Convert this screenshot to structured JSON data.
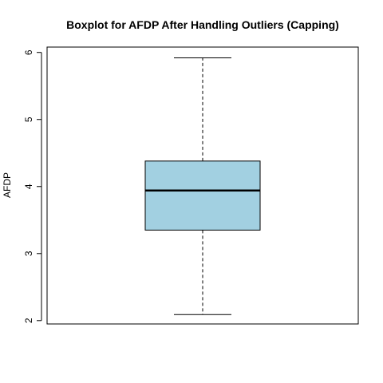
{
  "chart_data": {
    "type": "box",
    "title": "Boxplot for AFDP After Handling Outliers (Capping)",
    "ylabel": "AFDP",
    "xlabel": "",
    "ylim": [
      1.95,
      6.08
    ],
    "yticks": [
      2,
      3,
      4,
      5,
      6
    ],
    "grid": false,
    "box": {
      "lower_whisker": 2.09,
      "q1": 3.35,
      "median": 3.94,
      "q3": 4.38,
      "upper_whisker": 5.92
    },
    "fill_color": "#a2d0e1",
    "line_color": "#000000"
  }
}
